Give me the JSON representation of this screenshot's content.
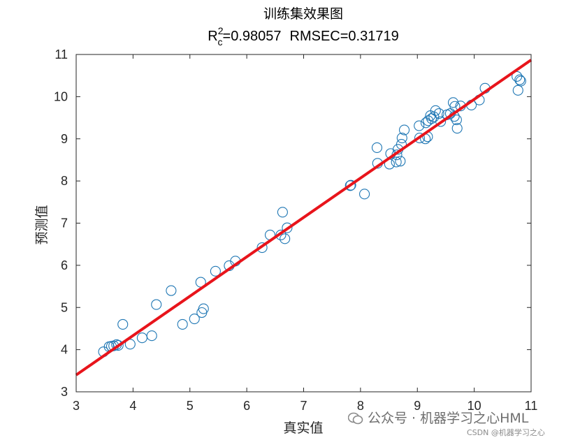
{
  "chart_data": {
    "type": "scatter",
    "title": "训练集效果图",
    "metrics": {
      "r_symbol": "R",
      "r_sup": "2",
      "r_sub": "c",
      "r2_text": "=0.98057",
      "rmsec_text": "RMSEC=0.31719"
    },
    "xlabel": "真实值",
    "ylabel": "预测值",
    "xlim": [
      3,
      11
    ],
    "ylim": [
      3,
      11
    ],
    "x_ticks": [
      3,
      4,
      5,
      6,
      7,
      8,
      9,
      10,
      11
    ],
    "y_ticks": [
      3,
      4,
      5,
      6,
      7,
      8,
      9,
      10,
      11
    ],
    "fit_line": {
      "x": [
        3,
        11
      ],
      "y": [
        3.4,
        10.87
      ],
      "color": "#e8141b"
    },
    "marker_color": "#1f77b4",
    "points": [
      [
        3.48,
        3.95
      ],
      [
        3.58,
        4.07
      ],
      [
        3.62,
        4.08
      ],
      [
        3.66,
        4.09
      ],
      [
        3.71,
        4.12
      ],
      [
        3.74,
        4.1
      ],
      [
        3.82,
        4.6
      ],
      [
        3.95,
        4.13
      ],
      [
        4.16,
        4.28
      ],
      [
        4.33,
        4.33
      ],
      [
        4.41,
        5.07
      ],
      [
        4.67,
        5.4
      ],
      [
        4.87,
        4.6
      ],
      [
        5.08,
        4.73
      ],
      [
        5.19,
        5.6
      ],
      [
        5.21,
        4.88
      ],
      [
        5.24,
        4.97
      ],
      [
        5.45,
        5.86
      ],
      [
        5.69,
        5.99
      ],
      [
        5.8,
        6.1
      ],
      [
        6.27,
        6.42
      ],
      [
        6.41,
        6.72
      ],
      [
        6.6,
        6.72
      ],
      [
        6.63,
        7.26
      ],
      [
        6.67,
        6.63
      ],
      [
        6.71,
        6.89
      ],
      [
        7.82,
        7.89
      ],
      [
        7.83,
        7.9
      ],
      [
        8.07,
        7.69
      ],
      [
        8.29,
        8.79
      ],
      [
        8.3,
        8.42
      ],
      [
        8.51,
        8.4
      ],
      [
        8.53,
        8.65
      ],
      [
        8.63,
        8.45
      ],
      [
        8.64,
        8.62
      ],
      [
        8.66,
        8.75
      ],
      [
        8.7,
        8.47
      ],
      [
        8.72,
        8.87
      ],
      [
        8.73,
        9.02
      ],
      [
        8.77,
        9.21
      ],
      [
        9.03,
        9.31
      ],
      [
        9.04,
        9.02
      ],
      [
        9.14,
        9.0
      ],
      [
        9.15,
        9.38
      ],
      [
        9.18,
        9.05
      ],
      [
        9.19,
        9.43
      ],
      [
        9.23,
        9.55
      ],
      [
        9.25,
        9.48
      ],
      [
        9.29,
        9.52
      ],
      [
        9.32,
        9.67
      ],
      [
        9.38,
        9.6
      ],
      [
        9.41,
        9.41
      ],
      [
        9.52,
        9.57
      ],
      [
        9.58,
        9.6
      ],
      [
        9.63,
        9.86
      ],
      [
        9.65,
        9.53
      ],
      [
        9.66,
        9.77
      ],
      [
        9.69,
        9.45
      ],
      [
        9.7,
        9.25
      ],
      [
        9.76,
        9.78
      ],
      [
        9.95,
        9.8
      ],
      [
        10.09,
        9.92
      ],
      [
        10.19,
        10.2
      ],
      [
        10.75,
        10.48
      ],
      [
        10.77,
        10.15
      ],
      [
        10.8,
        10.4
      ],
      [
        10.82,
        10.37
      ]
    ]
  },
  "watermark": {
    "main": "公众号 · 机器学习之心HML",
    "sub": "CSDN @机器学习之心"
  }
}
